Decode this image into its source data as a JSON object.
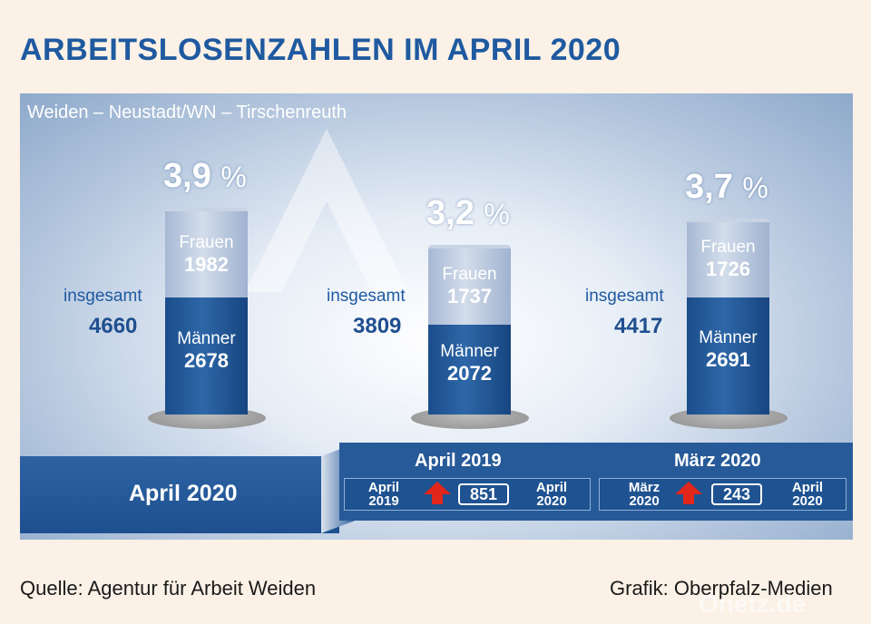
{
  "title": "ARBEITSLOSENZAHLEN IM APRIL 2020",
  "subtitle": "Weiden – Neustadt/WN – Tirschenreuth",
  "colors": {
    "accent": "#1f5aa0",
    "men": "#1e5090",
    "women": "#c4d1e4",
    "increase_arrow": "#e1261c"
  },
  "chart_data": {
    "type": "bar",
    "stacked": true,
    "categories": [
      "April 2020",
      "April 2019",
      "März 2020"
    ],
    "series": [
      {
        "name": "Männer",
        "values": [
          2678,
          2072,
          2691
        ]
      },
      {
        "name": "Frauen",
        "values": [
          1982,
          1737,
          1726
        ]
      }
    ],
    "totals_label": "insgesamt",
    "totals": [
      4660,
      3809,
      4417
    ],
    "rates": [
      "3,9",
      "3,2",
      "3,7"
    ],
    "rate_unit": "%"
  },
  "comparisons": [
    {
      "title": "April 2019",
      "from": [
        "April",
        "2019"
      ],
      "to": [
        "April",
        "2020"
      ],
      "difference": "851",
      "direction": "up",
      "icon": "red-up-arrow-icon"
    },
    {
      "title": "März 2020",
      "from": [
        "März",
        "2020"
      ],
      "to": [
        "April",
        "2020"
      ],
      "difference": "243",
      "direction": "up",
      "icon": "red-up-arrow-icon"
    }
  ],
  "footer": {
    "source": "Quelle: Agentur für Arbeit Weiden",
    "graphic": "Grafik: Oberpfalz-Medien",
    "credit": "Onetz.de"
  }
}
